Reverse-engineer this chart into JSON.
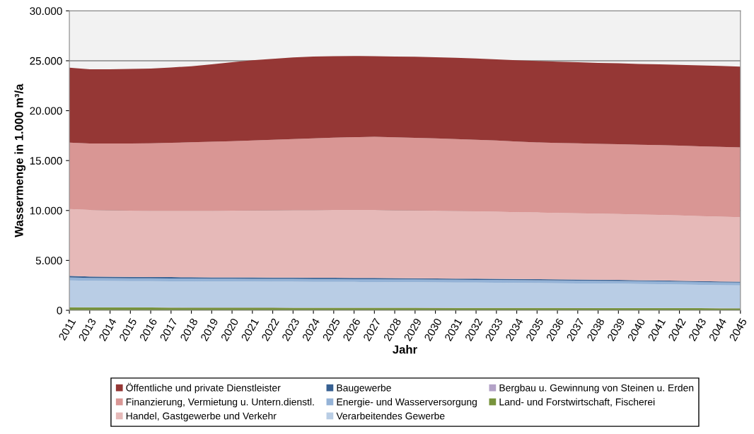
{
  "chart_data": {
    "type": "area",
    "stacked": true,
    "xlabel": "Jahr",
    "ylabel": "Wassermenge in 1.000 m³/a",
    "categories": [
      "2011",
      "2013",
      "2014",
      "2015",
      "2016",
      "2017",
      "2018",
      "2019",
      "2020",
      "2021",
      "2022",
      "2023",
      "2024",
      "2025",
      "2026",
      "2027",
      "2028",
      "2029",
      "2030",
      "2031",
      "2032",
      "2033",
      "2034",
      "2035",
      "2036",
      "2037",
      "2038",
      "2039",
      "2040",
      "2041",
      "2042",
      "2043",
      "2044",
      "2045"
    ],
    "series": [
      {
        "name": "Land- und Forstwirtschaft, Fischerei",
        "color": "#77933c",
        "values": [
          300,
          290,
          290,
          285,
          280,
          275,
          270,
          265,
          265,
          260,
          258,
          255,
          252,
          250,
          248,
          245,
          243,
          240,
          238,
          235,
          232,
          230,
          228,
          225,
          222,
          220,
          218,
          215,
          212,
          210,
          208,
          205,
          202,
          200
        ]
      },
      {
        "name": "Bergbau u. Gewinnung von Steinen u. Erden",
        "color": "#b3a2c7",
        "values": [
          20,
          20,
          20,
          20,
          20,
          20,
          20,
          20,
          20,
          20,
          20,
          20,
          20,
          20,
          20,
          20,
          20,
          20,
          20,
          20,
          20,
          20,
          20,
          20,
          20,
          20,
          20,
          20,
          20,
          20,
          20,
          20,
          20,
          20
        ]
      },
      {
        "name": "Verarbeitendes Gewerbe",
        "color": "#b9cde5",
        "values": [
          2680,
          2640,
          2630,
          2620,
          2620,
          2615,
          2610,
          2605,
          2600,
          2600,
          2595,
          2590,
          2585,
          2580,
          2575,
          2570,
          2560,
          2550,
          2540,
          2530,
          2520,
          2510,
          2500,
          2490,
          2475,
          2460,
          2445,
          2430,
          2410,
          2390,
          2360,
          2330,
          2300,
          2280
        ]
      },
      {
        "name": "Energie- und Wasserversorgung",
        "color": "#95b3d7",
        "values": [
          300,
          290,
          285,
          280,
          280,
          280,
          280,
          280,
          280,
          280,
          280,
          280,
          280,
          280,
          280,
          280,
          280,
          280,
          280,
          280,
          280,
          280,
          280,
          280,
          280,
          280,
          280,
          280,
          280,
          280,
          280,
          280,
          280,
          280
        ]
      },
      {
        "name": "Baugewerbe",
        "color": "#376092",
        "values": [
          150,
          145,
          140,
          140,
          135,
          135,
          130,
          130,
          130,
          130,
          125,
          125,
          125,
          120,
          120,
          120,
          115,
          115,
          115,
          110,
          110,
          110,
          105,
          105,
          105,
          100,
          100,
          100,
          95,
          95,
          95,
          90,
          90,
          90
        ]
      },
      {
        "name": "Handel, Gastgewerbe und Verkehr",
        "color": "#e6b9b8",
        "values": [
          6700,
          6670,
          6650,
          6640,
          6630,
          6640,
          6650,
          6670,
          6690,
          6720,
          6740,
          6760,
          6780,
          6800,
          6810,
          6820,
          6810,
          6800,
          6790,
          6770,
          6750,
          6730,
          6700,
          6680,
          6660,
          6640,
          6620,
          6600,
          6580,
          6560,
          6540,
          6510,
          6490,
          6460
        ]
      },
      {
        "name": "Finanzierung, Vermietung u. Untern.dienstl.",
        "color": "#d99694",
        "values": [
          6650,
          6650,
          6690,
          6730,
          6770,
          6820,
          6870,
          6920,
          6960,
          7000,
          7060,
          7120,
          7180,
          7240,
          7290,
          7330,
          7300,
          7270,
          7240,
          7210,
          7180,
          7130,
          7070,
          7020,
          7010,
          7010,
          7000,
          7000,
          7000,
          7000,
          7000,
          7000,
          7000,
          7000
        ]
      },
      {
        "name": "Öffentliche und private Dienstleister",
        "color": "#953735",
        "values": [
          7500,
          7450,
          7450,
          7470,
          7490,
          7540,
          7620,
          7760,
          7910,
          8040,
          8120,
          8180,
          8200,
          8160,
          8130,
          8070,
          8100,
          8130,
          8120,
          8140,
          8130,
          8120,
          8150,
          8160,
          8130,
          8120,
          8110,
          8100,
          8090,
          8090,
          8090,
          8110,
          8100,
          8090
        ]
      }
    ],
    "ylim": [
      0,
      30000
    ],
    "yticks": [
      {
        "value": 0,
        "label": "0"
      },
      {
        "value": 5000,
        "label": "5.000"
      },
      {
        "value": 10000,
        "label": "10.000"
      },
      {
        "value": 15000,
        "label": "15.000"
      },
      {
        "value": 20000,
        "label": "20.000"
      },
      {
        "value": 25000,
        "label": "25.000"
      },
      {
        "value": 30000,
        "label": "30.000"
      }
    ],
    "grid": "y",
    "legend": "bottom"
  }
}
